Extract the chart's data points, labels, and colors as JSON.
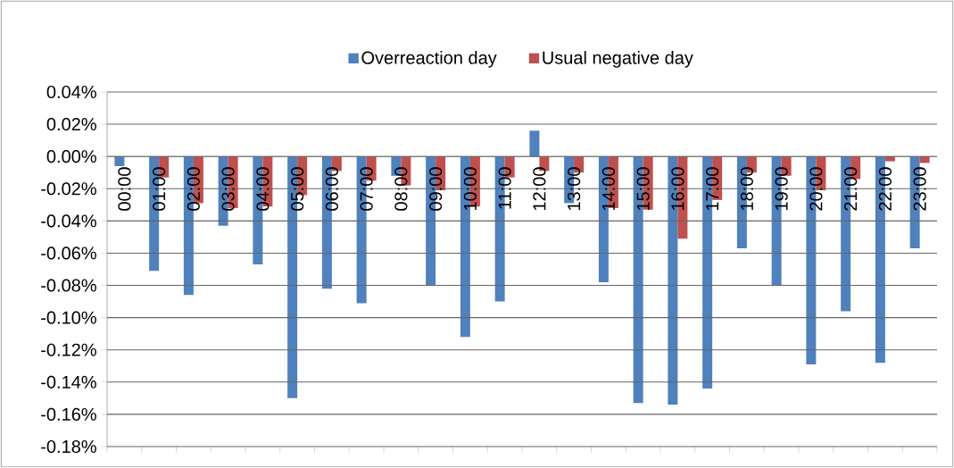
{
  "chart_data": {
    "type": "bar",
    "categories": [
      "00:00",
      "01:00",
      "02:00",
      "03:00",
      "04:00",
      "05:00",
      "06:00",
      "07:00",
      "08:00",
      "09:00",
      "10:00",
      "11:00",
      "12:00",
      "13:00",
      "14:00",
      "15:00",
      "16:00",
      "17:00",
      "18:00",
      "19:00",
      "20:00",
      "21:00",
      "22:00",
      "23:00"
    ],
    "series": [
      {
        "name": "Overreaction day",
        "color": "#4f81bd",
        "values": [
          -0.006,
          -0.071,
          -0.086,
          -0.043,
          -0.067,
          -0.15,
          -0.082,
          -0.091,
          -0.012,
          -0.08,
          -0.112,
          -0.09,
          0.016,
          -0.029,
          -0.078,
          -0.153,
          -0.154,
          -0.144,
          -0.057,
          -0.08,
          -0.129,
          -0.096,
          -0.128,
          -0.057
        ]
      },
      {
        "name": "Usual negative day",
        "color": "#c0504d",
        "values": [
          0,
          -0.013,
          -0.029,
          -0.032,
          -0.031,
          -0.024,
          -0.009,
          -0.015,
          -0.018,
          -0.021,
          -0.031,
          -0.013,
          -0.009,
          -0.01,
          -0.032,
          -0.033,
          -0.051,
          -0.027,
          -0.01,
          -0.012,
          -0.021,
          -0.014,
          -0.003,
          -0.004
        ]
      }
    ],
    "ylim": [
      -0.18,
      0.04
    ],
    "yticks": [
      {
        "value": -0.18,
        "label": "-0.18%"
      },
      {
        "value": -0.16,
        "label": "-0.16%"
      },
      {
        "value": -0.14,
        "label": "-0.14%"
      },
      {
        "value": -0.12,
        "label": "-0.12%"
      },
      {
        "value": -0.1,
        "label": "-0.10%"
      },
      {
        "value": -0.08,
        "label": "-0.08%"
      },
      {
        "value": -0.06,
        "label": "-0.06%"
      },
      {
        "value": -0.04,
        "label": "-0.04%"
      },
      {
        "value": -0.02,
        "label": "-0.02%"
      },
      {
        "value": 0.0,
        "label": "0.00%"
      },
      {
        "value": 0.02,
        "label": "0.02%"
      },
      {
        "value": 0.04,
        "label": "0.04%"
      }
    ],
    "grid": "y",
    "legend": "top"
  }
}
